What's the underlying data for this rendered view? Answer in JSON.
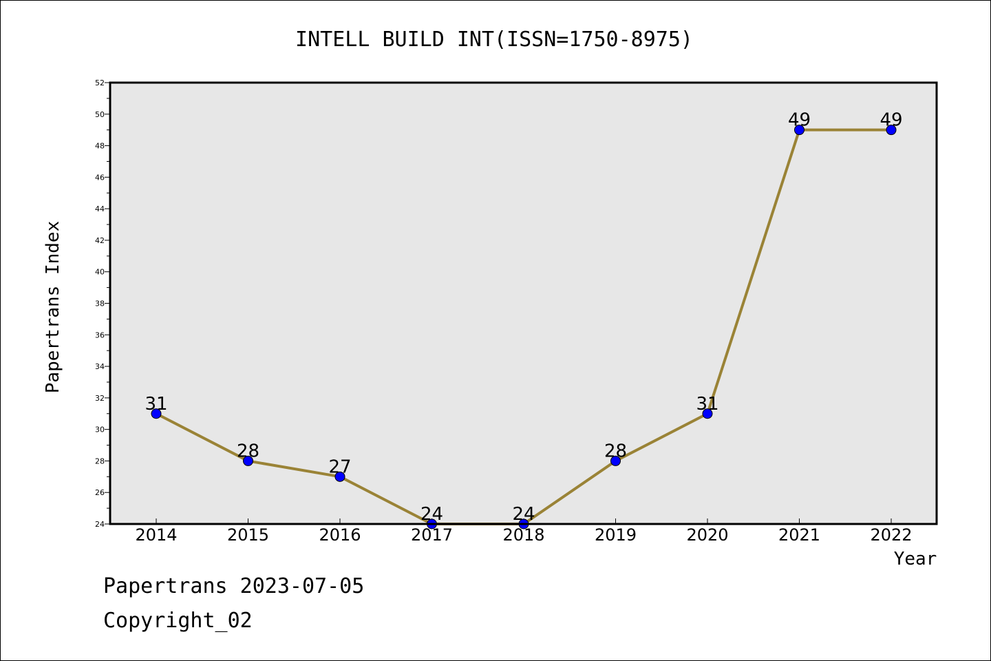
{
  "chart_data": {
    "type": "line",
    "title": "INTELL BUILD INT(ISSN=1750-8975)",
    "xlabel": "Year",
    "ylabel": "Papertrans Index",
    "x": [
      "2014",
      "2015",
      "2016",
      "2017",
      "2018",
      "2019",
      "2020",
      "2021",
      "2022"
    ],
    "series": [
      {
        "values": [
          31,
          28,
          27,
          24,
          24,
          28,
          31,
          49,
          49
        ]
      }
    ],
    "data_labels": [
      "31",
      "28",
      "27",
      "24",
      "24",
      "28",
      "31",
      "49",
      "49"
    ],
    "ylim": [
      24,
      52
    ],
    "yticks": [
      "24",
      "26",
      "28",
      "30",
      "32",
      "34",
      "36",
      "38",
      "40",
      "42",
      "44",
      "46",
      "48",
      "50",
      "52"
    ],
    "line_color": "#9a8336",
    "marker_color": "#0000ff",
    "plot_background": "#e7e7e7",
    "grid": false
  },
  "footer": {
    "line1": "Papertrans 2023-07-05",
    "line2": "Copyright_02"
  }
}
